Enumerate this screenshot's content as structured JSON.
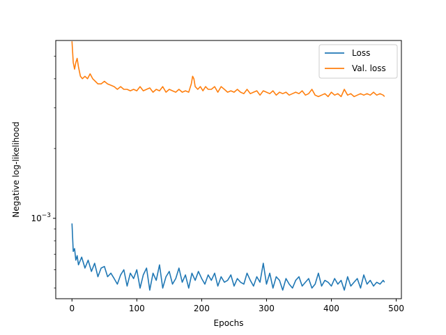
{
  "chart_data": {
    "type": "line",
    "title": "",
    "xlabel": "Epochs",
    "ylabel": "Negative log-likelihood",
    "xlim": [
      -25,
      508
    ],
    "ylim": [
      0.00045,
      0.00585
    ],
    "yscale": "log",
    "x_ticks": [
      0,
      100,
      200,
      300,
      400,
      500
    ],
    "y_major_ticks": [
      {
        "value": 0.001,
        "base": "10",
        "exponent": "−3"
      }
    ],
    "y_minor_ticks": [
      0.0005,
      0.0006,
      0.0007,
      0.0008,
      0.0009,
      0.002,
      0.003,
      0.004,
      0.005
    ],
    "grid": false,
    "legend": {
      "position": "top-right",
      "entries": [
        "Loss",
        "Val. loss"
      ]
    },
    "series": [
      {
        "name": "Loss",
        "color": "#1f77b4",
        "x": [
          0,
          2,
          4,
          6,
          8,
          10,
          15,
          20,
          25,
          30,
          35,
          40,
          45,
          50,
          55,
          60,
          65,
          70,
          75,
          80,
          85,
          90,
          95,
          100,
          105,
          110,
          115,
          120,
          125,
          130,
          135,
          140,
          145,
          150,
          155,
          160,
          165,
          170,
          175,
          180,
          185,
          190,
          195,
          200,
          205,
          210,
          215,
          220,
          225,
          230,
          235,
          240,
          245,
          250,
          255,
          260,
          265,
          270,
          275,
          280,
          285,
          290,
          295,
          300,
          305,
          310,
          315,
          320,
          325,
          330,
          335,
          340,
          345,
          350,
          355,
          360,
          365,
          370,
          375,
          380,
          385,
          390,
          395,
          400,
          405,
          410,
          415,
          420,
          425,
          430,
          435,
          440,
          445,
          450,
          455,
          460,
          465,
          470,
          475,
          480,
          482
        ],
        "values": [
          0.00095,
          0.00072,
          0.00074,
          0.00066,
          0.00069,
          0.00063,
          0.00068,
          0.00061,
          0.00066,
          0.00059,
          0.00064,
          0.00056,
          0.00061,
          0.00062,
          0.00056,
          0.00058,
          0.00055,
          0.00052,
          0.00057,
          0.0006,
          0.00051,
          0.00058,
          0.00055,
          0.0006,
          0.0005,
          0.00057,
          0.00061,
          0.00049,
          0.00058,
          0.00054,
          0.00063,
          0.0005,
          0.00056,
          0.00059,
          0.00052,
          0.00055,
          0.00061,
          0.00053,
          0.00057,
          0.0005,
          0.00058,
          0.00054,
          0.00059,
          0.00055,
          0.00052,
          0.00057,
          0.00054,
          0.00058,
          0.00051,
          0.00056,
          0.00053,
          0.00054,
          0.00057,
          0.00051,
          0.00055,
          0.00053,
          0.00052,
          0.00058,
          0.00054,
          0.00051,
          0.00056,
          0.00053,
          0.00064,
          0.00052,
          0.00058,
          0.0005,
          0.00056,
          0.00054,
          0.00049,
          0.00055,
          0.00052,
          0.0005,
          0.00054,
          0.00056,
          0.00051,
          0.00053,
          0.00055,
          0.0005,
          0.00052,
          0.00058,
          0.00051,
          0.00054,
          0.00053,
          0.00051,
          0.00055,
          0.00052,
          0.00054,
          0.00049,
          0.00056,
          0.00051,
          0.00053,
          0.00055,
          0.0005,
          0.00057,
          0.00052,
          0.00054,
          0.00051,
          0.00053,
          0.00052,
          0.00054,
          0.00053
        ]
      },
      {
        "name": "Val. loss",
        "color": "#ff7f0e",
        "x": [
          0,
          2,
          4,
          6,
          8,
          10,
          13,
          16,
          20,
          24,
          28,
          32,
          36,
          40,
          45,
          50,
          55,
          60,
          65,
          70,
          75,
          80,
          85,
          90,
          95,
          100,
          105,
          110,
          115,
          120,
          125,
          130,
          135,
          140,
          145,
          150,
          155,
          160,
          165,
          170,
          175,
          180,
          184,
          186,
          188,
          190,
          194,
          198,
          202,
          206,
          210,
          215,
          220,
          225,
          230,
          235,
          240,
          245,
          250,
          255,
          260,
          265,
          270,
          275,
          280,
          285,
          290,
          295,
          300,
          305,
          310,
          315,
          320,
          325,
          330,
          335,
          340,
          345,
          350,
          355,
          360,
          365,
          370,
          375,
          380,
          385,
          390,
          395,
          400,
          405,
          410,
          415,
          420,
          425,
          430,
          435,
          440,
          445,
          450,
          455,
          460,
          465,
          470,
          475,
          480,
          482
        ],
        "values": [
          0.0058,
          0.0047,
          0.0044,
          0.0047,
          0.0049,
          0.0045,
          0.0041,
          0.004,
          0.0041,
          0.004,
          0.0042,
          0.004,
          0.0039,
          0.0038,
          0.0038,
          0.0039,
          0.0038,
          0.00375,
          0.0037,
          0.0036,
          0.0037,
          0.0036,
          0.0036,
          0.00355,
          0.0036,
          0.00355,
          0.0037,
          0.00355,
          0.0036,
          0.00365,
          0.0035,
          0.0036,
          0.00355,
          0.0037,
          0.0035,
          0.0036,
          0.00355,
          0.0035,
          0.0036,
          0.0035,
          0.00355,
          0.0035,
          0.0038,
          0.0041,
          0.004,
          0.0037,
          0.0036,
          0.0037,
          0.00355,
          0.0037,
          0.0036,
          0.0036,
          0.0037,
          0.0035,
          0.0037,
          0.0036,
          0.0035,
          0.00355,
          0.0035,
          0.0036,
          0.0035,
          0.00345,
          0.0036,
          0.00345,
          0.0035,
          0.00355,
          0.0034,
          0.00355,
          0.0035,
          0.00345,
          0.00355,
          0.0034,
          0.0035,
          0.00345,
          0.0035,
          0.0034,
          0.00345,
          0.0035,
          0.00345,
          0.00355,
          0.0034,
          0.00345,
          0.0036,
          0.0034,
          0.00335,
          0.0034,
          0.00345,
          0.00335,
          0.0035,
          0.0034,
          0.00345,
          0.00335,
          0.0036,
          0.0034,
          0.00345,
          0.00335,
          0.0034,
          0.00345,
          0.0034,
          0.00345,
          0.0034,
          0.0035,
          0.0034,
          0.00345,
          0.0034,
          0.00335
        ]
      }
    ]
  }
}
